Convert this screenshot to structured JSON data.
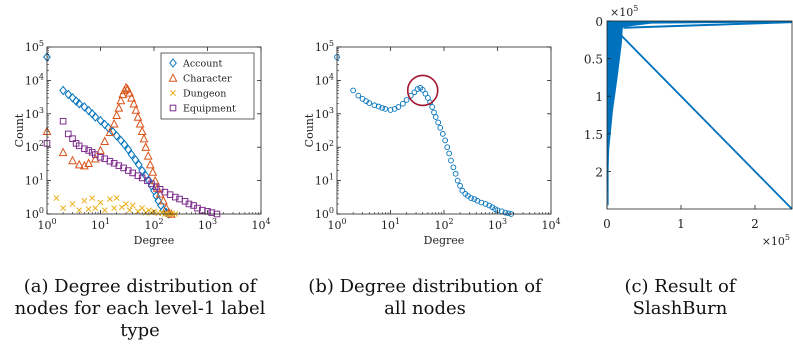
{
  "chart_data": [
    {
      "type": "scatter",
      "xlabel": "Degree",
      "ylabel": "Count",
      "x_scale": "log",
      "y_scale": "log",
      "xlim": [
        1,
        10000
      ],
      "ylim": [
        1,
        100000
      ],
      "x_ticks": [
        {
          "e": "0"
        },
        {
          "e": "1"
        },
        {
          "e": "2"
        },
        {
          "e": "3"
        },
        {
          "e": "4"
        }
      ],
      "y_ticks": [
        {
          "e": "0"
        },
        {
          "e": "1"
        },
        {
          "e": "2"
        },
        {
          "e": "3"
        },
        {
          "e": "4"
        },
        {
          "e": "5"
        }
      ],
      "legend_position": "top-right",
      "series": [
        {
          "name": "Account",
          "marker": "diamond",
          "color": "#0072BD",
          "points": [
            [
              1,
              50000
            ],
            [
              2,
              5000
            ],
            [
              2.5,
              3800
            ],
            [
              3,
              3000
            ],
            [
              3.5,
              2400
            ],
            [
              4,
              2000
            ],
            [
              5,
              1600
            ],
            [
              6,
              1250
            ],
            [
              7,
              1000
            ],
            [
              8,
              800
            ],
            [
              10,
              620
            ],
            [
              12,
              480
            ],
            [
              14,
              380
            ],
            [
              17,
              290
            ],
            [
              20,
              220
            ],
            [
              24,
              160
            ],
            [
              28,
              120
            ],
            [
              33,
              85
            ],
            [
              38,
              60
            ],
            [
              45,
              42
            ],
            [
              52,
              30
            ],
            [
              60,
              20
            ],
            [
              70,
              14
            ],
            [
              80,
              10
            ],
            [
              90,
              7
            ],
            [
              100,
              5
            ],
            [
              110,
              3.5
            ],
            [
              120,
              2.5
            ],
            [
              135,
              1.8
            ],
            [
              150,
              1.3
            ],
            [
              170,
              1.1
            ],
            [
              190,
              1
            ]
          ]
        },
        {
          "name": "Character",
          "marker": "triangle",
          "color": "#D95319",
          "points": [
            [
              1,
              300
            ],
            [
              2,
              70
            ],
            [
              3,
              40
            ],
            [
              4,
              30
            ],
            [
              5,
              28
            ],
            [
              6,
              33
            ],
            [
              8,
              45
            ],
            [
              10,
              80
            ],
            [
              12,
              150
            ],
            [
              15,
              280
            ],
            [
              18,
              500
            ],
            [
              20,
              900
            ],
            [
              22,
              1500
            ],
            [
              24,
              2500
            ],
            [
              26,
              3800
            ],
            [
              28,
              5000
            ],
            [
              30,
              6000
            ],
            [
              32,
              5500
            ],
            [
              35,
              4200
            ],
            [
              38,
              3000
            ],
            [
              42,
              2000
            ],
            [
              46,
              1300
            ],
            [
              50,
              800
            ],
            [
              55,
              500
            ],
            [
              60,
              300
            ],
            [
              65,
              180
            ],
            [
              70,
              100
            ],
            [
              78,
              55
            ],
            [
              85,
              30
            ],
            [
              95,
              18
            ],
            [
              105,
              10
            ],
            [
              115,
              6
            ],
            [
              130,
              4
            ],
            [
              150,
              2.5
            ],
            [
              170,
              1.5
            ],
            [
              190,
              1.1
            ],
            [
              210,
              1
            ]
          ]
        },
        {
          "name": "Dungeon",
          "marker": "x",
          "color": "#EDB120",
          "points": [
            [
              1.5,
              3
            ],
            [
              2,
              1.5
            ],
            [
              3,
              2
            ],
            [
              4,
              1.3
            ],
            [
              5,
              2.5
            ],
            [
              6,
              1.4
            ],
            [
              7,
              3
            ],
            [
              8,
              1.5
            ],
            [
              10,
              2.2
            ],
            [
              12,
              1.3
            ],
            [
              15,
              2.8
            ],
            [
              18,
              1.5
            ],
            [
              20,
              3
            ],
            [
              25,
              1.6
            ],
            [
              30,
              2
            ],
            [
              35,
              1.3
            ],
            [
              40,
              1.8
            ],
            [
              50,
              1.2
            ],
            [
              60,
              1.5
            ],
            [
              70,
              1.1
            ],
            [
              80,
              1.3
            ],
            [
              90,
              1.1
            ],
            [
              100,
              1.2
            ],
            [
              120,
              1.05
            ],
            [
              140,
              1.1
            ],
            [
              160,
              1
            ],
            [
              180,
              1
            ],
            [
              200,
              1
            ],
            [
              220,
              1.05
            ],
            [
              250,
              1
            ]
          ]
        },
        {
          "name": "Equipment",
          "marker": "square",
          "color": "#7E2F8E",
          "points": [
            [
              1,
              130
            ],
            [
              2,
              600
            ],
            [
              2.5,
              250
            ],
            [
              3,
              180
            ],
            [
              3.5,
              130
            ],
            [
              4,
              110
            ],
            [
              5,
              90
            ],
            [
              6,
              80
            ],
            [
              7,
              70
            ],
            [
              8,
              60
            ],
            [
              10,
              50
            ],
            [
              12,
              45
            ],
            [
              15,
              38
            ],
            [
              18,
              33
            ],
            [
              22,
              28
            ],
            [
              27,
              24
            ],
            [
              33,
              20
            ],
            [
              40,
              17
            ],
            [
              50,
              14
            ],
            [
              60,
              12
            ],
            [
              75,
              10
            ],
            [
              90,
              8
            ],
            [
              110,
              6.5
            ],
            [
              130,
              5.5
            ],
            [
              160,
              4.5
            ],
            [
              200,
              3.8
            ],
            [
              250,
              3.2
            ],
            [
              300,
              2.8
            ],
            [
              380,
              2.4
            ],
            [
              450,
              2
            ],
            [
              550,
              1.8
            ],
            [
              650,
              1.5
            ],
            [
              800,
              1.3
            ],
            [
              1000,
              1.2
            ],
            [
              1200,
              1.1
            ],
            [
              1500,
              1
            ]
          ]
        }
      ]
    },
    {
      "type": "scatter",
      "xlabel": "Degree",
      "ylabel": "Count",
      "x_scale": "log",
      "y_scale": "log",
      "xlim": [
        1,
        10000
      ],
      "ylim": [
        1,
        100000
      ],
      "x_ticks": [
        {
          "e": "0"
        },
        {
          "e": "1"
        },
        {
          "e": "2"
        },
        {
          "e": "3"
        },
        {
          "e": "4"
        }
      ],
      "y_ticks": [
        {
          "e": "0"
        },
        {
          "e": "1"
        },
        {
          "e": "2"
        },
        {
          "e": "3"
        },
        {
          "e": "4"
        },
        {
          "e": "5"
        }
      ],
      "highlight_circle": {
        "x": 40,
        "y": 5000
      },
      "series": [
        {
          "marker": "circle",
          "color": "#0072BD",
          "points": [
            [
              1,
              50000
            ],
            [
              2,
              5000
            ],
            [
              2.5,
              3500
            ],
            [
              3,
              2800
            ],
            [
              3.5,
              2400
            ],
            [
              4,
              2100
            ],
            [
              5,
              1800
            ],
            [
              6,
              1650
            ],
            [
              7,
              1500
            ],
            [
              8,
              1400
            ],
            [
              10,
              1300
            ],
            [
              12,
              1400
            ],
            [
              14,
              1600
            ],
            [
              17,
              2000
            ],
            [
              20,
              2600
            ],
            [
              24,
              3500
            ],
            [
              28,
              4400
            ],
            [
              32,
              5500
            ],
            [
              36,
              6000
            ],
            [
              40,
              5200
            ],
            [
              45,
              4000
            ],
            [
              50,
              3000
            ],
            [
              55,
              2200
            ],
            [
              60,
              1600
            ],
            [
              65,
              1100
            ],
            [
              70,
              800
            ],
            [
              78,
              550
            ],
            [
              85,
              380
            ],
            [
              95,
              250
            ],
            [
              105,
              160
            ],
            [
              115,
              100
            ],
            [
              125,
              65
            ],
            [
              135,
              40
            ],
            [
              150,
              25
            ],
            [
              165,
              16
            ],
            [
              180,
              10
            ],
            [
              200,
              7
            ],
            [
              220,
              5
            ],
            [
              250,
              4
            ],
            [
              280,
              3.5
            ],
            [
              320,
              3
            ],
            [
              370,
              2.8
            ],
            [
              420,
              2.5
            ],
            [
              500,
              2.2
            ],
            [
              600,
              2
            ],
            [
              700,
              1.8
            ],
            [
              800,
              1.6
            ],
            [
              900,
              1.4
            ],
            [
              1000,
              1.3
            ],
            [
              1200,
              1.2
            ],
            [
              1400,
              1.1
            ],
            [
              1600,
              1.05
            ],
            [
              1800,
              1
            ]
          ]
        }
      ]
    },
    {
      "type": "heatmap",
      "description_free": true,
      "xlim": [
        0,
        250000
      ],
      "ylim": [
        0,
        250000
      ],
      "x_ticks": [
        "0",
        "1",
        "2"
      ],
      "y_ticks": [
        "0",
        "0.5",
        "1",
        "1.5",
        "2"
      ],
      "multiplier_base": "×10",
      "multiplier_exp": "5",
      "color": "#0072BD"
    }
  ],
  "captions": {
    "a": [
      "(a) Degree distribution of",
      "nodes for each level-1 label",
      "type"
    ],
    "b": [
      "(b) Degree distribution of",
      "all nodes"
    ],
    "c": [
      "(c) Result of",
      "SlashBurn"
    ]
  }
}
